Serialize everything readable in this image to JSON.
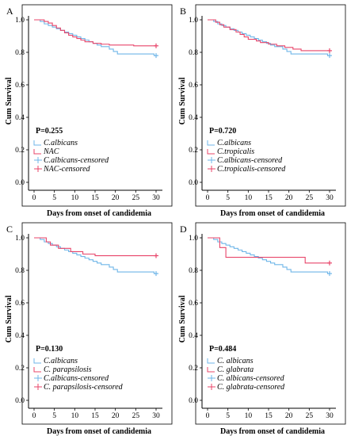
{
  "chart_data": [
    {
      "type": "line",
      "panel": "A",
      "xlabel": "Days from onset of candidemia",
      "ylabel": "Cum Survival",
      "xlim": [
        0,
        30
      ],
      "ylim": [
        0.0,
        1.0
      ],
      "xticks": [
        "0",
        "5",
        "10",
        "15",
        "20",
        "25",
        "30"
      ],
      "yticks": [
        "0.0",
        "0.2",
        "0.4",
        "0.6",
        "0.8",
        "1.0"
      ],
      "p_value": "P=0.255",
      "legend": [
        "C.albicans",
        "NAC",
        "C.albicans-censored",
        "NAC-censored"
      ],
      "series": [
        {
          "name": "C.albicans",
          "color": "#6fb6e8",
          "x": [
            0,
            1.5,
            2.5,
            3.5,
            4.5,
            5.5,
            6.5,
            7.5,
            8.5,
            9.5,
            10.5,
            11.5,
            12.5,
            13.5,
            14.5,
            15.5,
            16.5,
            18.5,
            19.5,
            20.5,
            29.5,
            30
          ],
          "y": [
            1.0,
            0.99,
            0.975,
            0.965,
            0.955,
            0.945,
            0.935,
            0.925,
            0.915,
            0.905,
            0.895,
            0.885,
            0.875,
            0.865,
            0.855,
            0.845,
            0.835,
            0.82,
            0.805,
            0.79,
            0.78,
            0.78
          ],
          "censored": [
            [
              30,
              0.78
            ]
          ]
        },
        {
          "name": "NAC",
          "color": "#e8456a",
          "x": [
            0,
            2.5,
            3.5,
            4.5,
            5.5,
            6.5,
            7.5,
            8.5,
            9.5,
            10.5,
            11.5,
            12.5,
            14.5,
            16.5,
            18.5,
            20.5,
            24.5,
            30
          ],
          "y": [
            1.0,
            0.99,
            0.98,
            0.965,
            0.95,
            0.935,
            0.92,
            0.905,
            0.895,
            0.885,
            0.875,
            0.865,
            0.855,
            0.85,
            0.845,
            0.845,
            0.84,
            0.84
          ],
          "censored": [
            [
              30,
              0.84
            ]
          ]
        }
      ]
    },
    {
      "type": "line",
      "panel": "B",
      "xlabel": "Days from onset of candidemia",
      "ylabel": "Cum Survival",
      "xlim": [
        0,
        30
      ],
      "ylim": [
        0.0,
        1.0
      ],
      "xticks": [
        "0",
        "5",
        "10",
        "15",
        "20",
        "25",
        "30"
      ],
      "yticks": [
        "0.0",
        "0.2",
        "0.4",
        "0.6",
        "0.8",
        "1.0"
      ],
      "p_value": "P=0.720",
      "legend": [
        "C.albicans",
        "C.tropicalis",
        "C.albicans-censored",
        "C.tropicalis-censored"
      ],
      "series": [
        {
          "name": "C.albicans",
          "color": "#6fb6e8",
          "x": [
            0,
            1.5,
            2.5,
            3.5,
            4.5,
            5.5,
            6.5,
            7.5,
            8.5,
            9.5,
            10.5,
            11.5,
            12.5,
            13.5,
            14.5,
            15.5,
            16.5,
            18.5,
            19.5,
            20.5,
            29.5,
            30
          ],
          "y": [
            1.0,
            0.99,
            0.975,
            0.965,
            0.955,
            0.945,
            0.935,
            0.925,
            0.915,
            0.905,
            0.895,
            0.885,
            0.875,
            0.865,
            0.855,
            0.845,
            0.835,
            0.82,
            0.805,
            0.79,
            0.78,
            0.78
          ],
          "censored": [
            [
              30,
              0.78
            ]
          ]
        },
        {
          "name": "C.tropicalis",
          "color": "#e8456a",
          "x": [
            0,
            2,
            3,
            4,
            5.5,
            7,
            8,
            9,
            10,
            12,
            13,
            15,
            17,
            19,
            21,
            23,
            25,
            30
          ],
          "y": [
            1.0,
            0.985,
            0.97,
            0.955,
            0.94,
            0.925,
            0.91,
            0.895,
            0.88,
            0.87,
            0.86,
            0.85,
            0.84,
            0.83,
            0.82,
            0.81,
            0.81,
            0.81
          ],
          "censored": [
            [
              30,
              0.81
            ]
          ]
        }
      ]
    },
    {
      "type": "line",
      "panel": "C",
      "xlabel": "Days from onset of candidemia",
      "ylabel": "Cum Survival",
      "xlim": [
        0,
        30
      ],
      "ylim": [
        0.0,
        1.0
      ],
      "xticks": [
        "0",
        "5",
        "10",
        "15",
        "20",
        "25",
        "30"
      ],
      "yticks": [
        "0.0",
        "0.2",
        "0.4",
        "0.6",
        "0.8",
        "1.0"
      ],
      "p_value": "P=0.130",
      "legend": [
        "C.albicans",
        "C. parapsilosis",
        "C.albicans-censored",
        "C. parapsilosis-censored"
      ],
      "series": [
        {
          "name": "C.albicans",
          "color": "#6fb6e8",
          "x": [
            0,
            1.5,
            2.5,
            3.5,
            4.5,
            5.5,
            6.5,
            7.5,
            8.5,
            9.5,
            10.5,
            11.5,
            12.5,
            13.5,
            14.5,
            15.5,
            16.5,
            18.5,
            19.5,
            20.5,
            29.5,
            30
          ],
          "y": [
            1.0,
            0.99,
            0.975,
            0.965,
            0.955,
            0.945,
            0.935,
            0.925,
            0.915,
            0.905,
            0.895,
            0.885,
            0.875,
            0.865,
            0.855,
            0.845,
            0.835,
            0.82,
            0.805,
            0.79,
            0.78,
            0.78
          ],
          "censored": [
            [
              30,
              0.78
            ]
          ]
        },
        {
          "name": "C. parapsilosis",
          "color": "#e8456a",
          "x": [
            0,
            3,
            4,
            6,
            9,
            12,
            15,
            30
          ],
          "y": [
            1.0,
            0.975,
            0.955,
            0.935,
            0.915,
            0.9,
            0.89,
            0.89
          ],
          "censored": [
            [
              30,
              0.89
            ]
          ]
        }
      ]
    },
    {
      "type": "line",
      "panel": "D",
      "xlabel": "Days from onset of candidemia",
      "ylabel": "Cum Survival",
      "xlim": [
        0,
        30
      ],
      "ylim": [
        0.0,
        1.0
      ],
      "xticks": [
        "0",
        "5",
        "10",
        "15",
        "20",
        "25",
        "30"
      ],
      "yticks": [
        "0.0",
        "0.2",
        "0.4",
        "0.6",
        "0.8",
        "1.0"
      ],
      "p_value": "P=0.484",
      "legend": [
        "C. albicans",
        "C. glabrata",
        "C. albicans-censored",
        "C. glabrata-censored"
      ],
      "series": [
        {
          "name": "C. albicans",
          "color": "#6fb6e8",
          "x": [
            0,
            1.5,
            2.5,
            3.5,
            4.5,
            5.5,
            6.5,
            7.5,
            8.5,
            9.5,
            10.5,
            11.5,
            12.5,
            13.5,
            14.5,
            15.5,
            16.5,
            18.5,
            19.5,
            20.5,
            29.5,
            30
          ],
          "y": [
            1.0,
            0.99,
            0.975,
            0.965,
            0.955,
            0.945,
            0.935,
            0.925,
            0.915,
            0.905,
            0.895,
            0.885,
            0.875,
            0.865,
            0.855,
            0.845,
            0.835,
            0.82,
            0.805,
            0.79,
            0.78,
            0.78
          ],
          "censored": [
            [
              30,
              0.78
            ]
          ]
        },
        {
          "name": "C. glabrata",
          "color": "#e8456a",
          "x": [
            0,
            3,
            4.5,
            24,
            30
          ],
          "y": [
            1.0,
            0.94,
            0.88,
            0.845,
            0.845
          ],
          "censored": [
            [
              30,
              0.845
            ]
          ]
        }
      ]
    }
  ]
}
